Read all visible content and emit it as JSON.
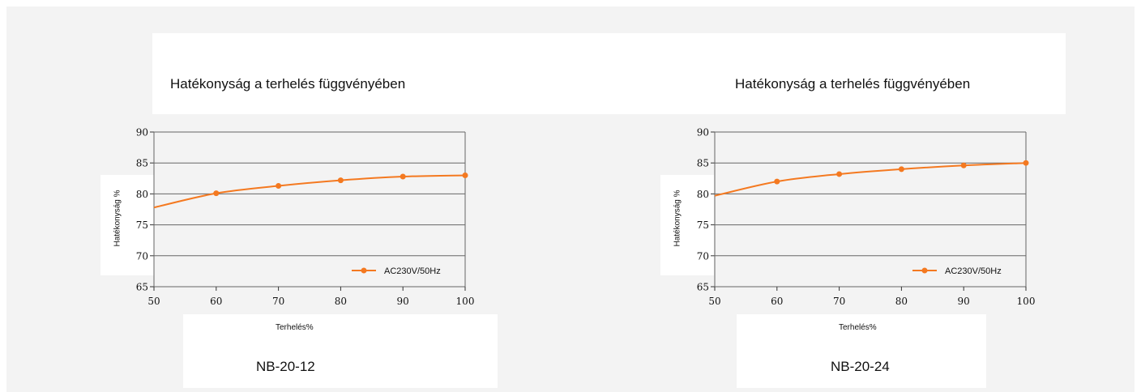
{
  "charts": [
    {
      "title": "Hatékonyság a terhelés függvényében",
      "xlabel": "Terhelés%",
      "ylabel": "Hatékonyság %",
      "model": "NB-20-12",
      "legend": "AC230V/50Hz"
    },
    {
      "title": "Hatékonyság a terhelés függvényében",
      "xlabel": "Terhelés%",
      "ylabel": "Hatékonyság %",
      "model": "NB-20-24",
      "legend": "AC230V/50Hz"
    }
  ],
  "chart_data": [
    {
      "type": "line",
      "title": "Hatékonyság a terhelés függvényében",
      "xlabel": "Terhelés%",
      "ylabel": "Hatékonyság %",
      "xlim": [
        50,
        100
      ],
      "ylim": [
        65,
        90
      ],
      "x_ticks": [
        50,
        60,
        70,
        80,
        90,
        100
      ],
      "y_ticks": [
        65,
        70,
        75,
        80,
        85,
        90
      ],
      "grid": "horizontal",
      "legend_position": "bottom-right",
      "series": [
        {
          "name": "AC230V/50Hz",
          "color": "#f47920",
          "start": {
            "x": 50,
            "y": 77.8
          },
          "x": [
            60,
            70,
            80,
            90,
            100
          ],
          "y": [
            80.1,
            81.3,
            82.2,
            82.8,
            83.0
          ]
        }
      ]
    },
    {
      "type": "line",
      "title": "Hatékonyság a terhelés függvényében",
      "xlabel": "Terhelés%",
      "ylabel": "Hatékonyság %",
      "xlim": [
        50,
        100
      ],
      "ylim": [
        65,
        90
      ],
      "x_ticks": [
        50,
        60,
        70,
        80,
        90,
        100
      ],
      "y_ticks": [
        65,
        70,
        75,
        80,
        85,
        90
      ],
      "grid": "horizontal",
      "legend_position": "bottom-right",
      "series": [
        {
          "name": "AC230V/50Hz",
          "color": "#f47920",
          "start": {
            "x": 50,
            "y": 79.7
          },
          "x": [
            60,
            70,
            80,
            90,
            100
          ],
          "y": [
            82.0,
            83.2,
            84.0,
            84.6,
            85.0
          ]
        }
      ]
    }
  ]
}
